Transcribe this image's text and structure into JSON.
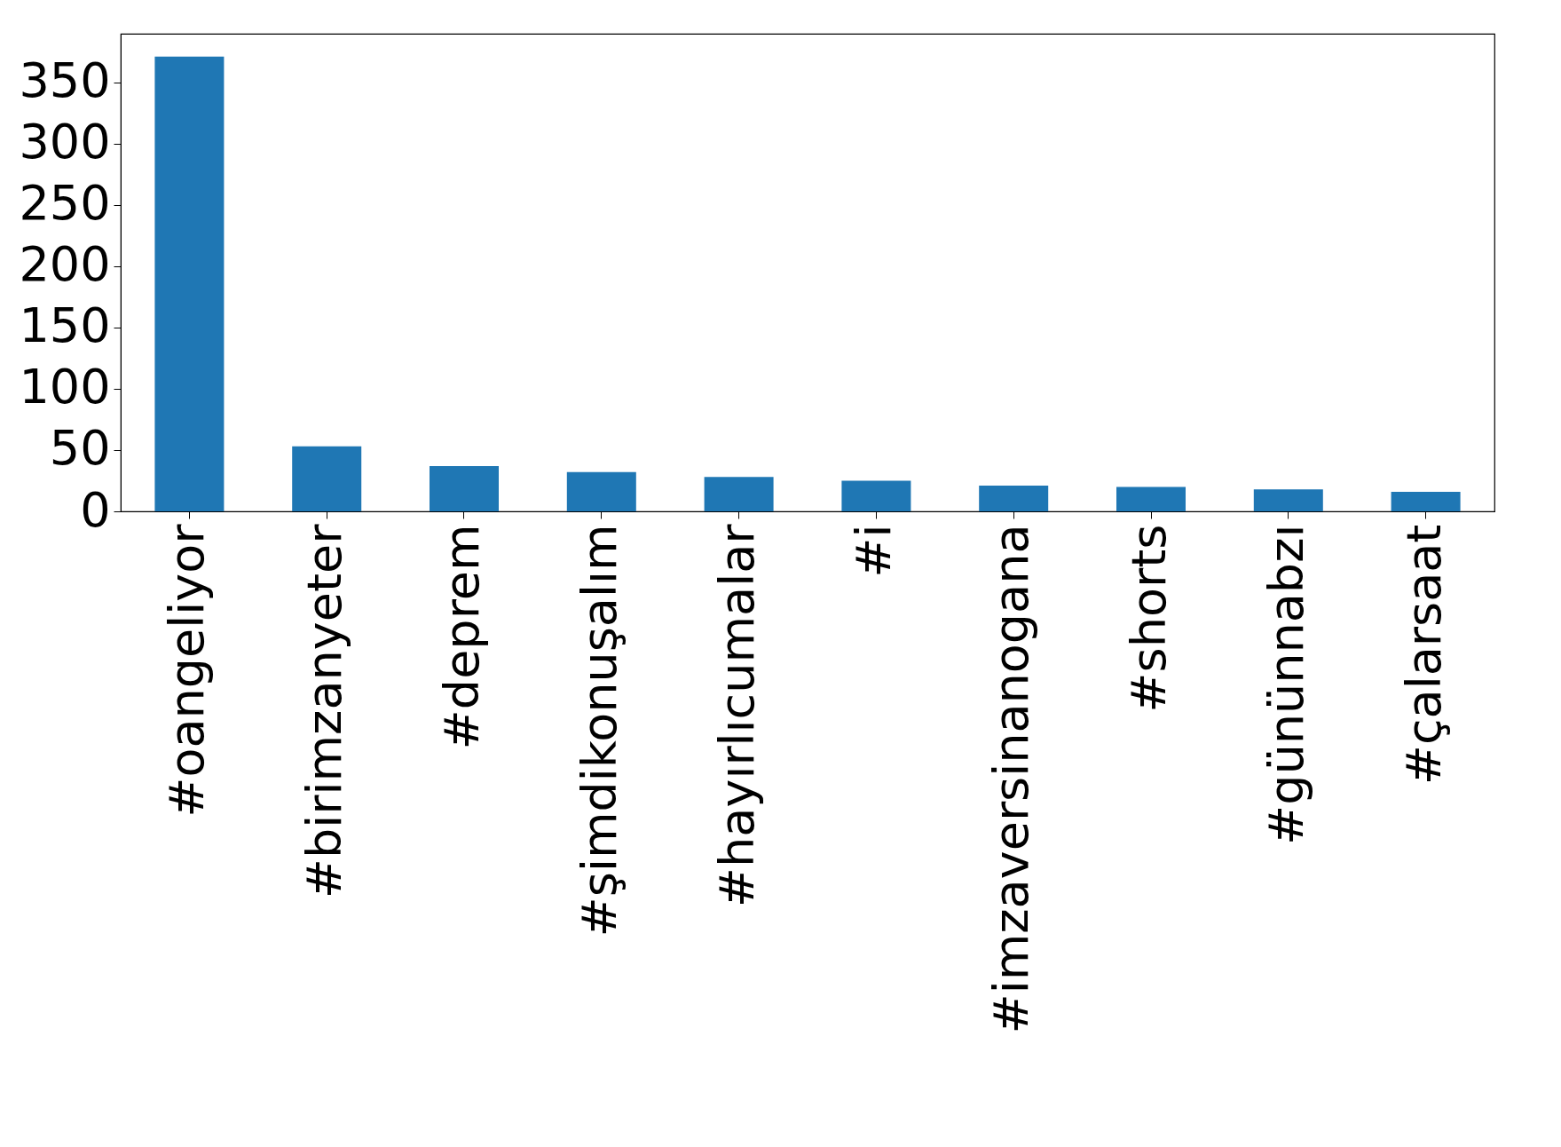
{
  "chart_data": {
    "type": "bar",
    "categories": [
      "#oangeliyor",
      "#birimzanyeter",
      "#deprem",
      "#şimdikonuşalım",
      "#hayırlıcumalar",
      "#i",
      "#imzaversinanogana",
      "#shorts",
      "#gününnabzı",
      "#çalarsaat"
    ],
    "values": [
      371,
      53,
      37,
      32,
      28,
      25,
      21,
      20,
      18,
      16
    ],
    "color": "#1f77b4",
    "ylim": [
      0,
      389.6
    ],
    "yticks": [
      0,
      50,
      100,
      150,
      200,
      250,
      300,
      350
    ],
    "grid": false
  }
}
